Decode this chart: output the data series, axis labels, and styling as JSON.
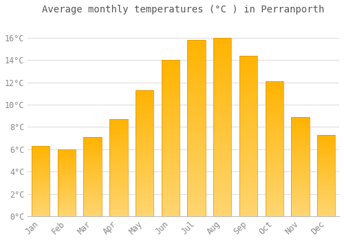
{
  "title": "Average monthly temperatures (°C ) in Perranporth",
  "months": [
    "Jan",
    "Feb",
    "Mar",
    "Apr",
    "May",
    "Jun",
    "Jul",
    "Aug",
    "Sep",
    "Oct",
    "Nov",
    "Dec"
  ],
  "values": [
    6.3,
    6.0,
    7.1,
    8.7,
    11.3,
    14.0,
    15.8,
    16.0,
    14.4,
    12.1,
    8.9,
    7.3
  ],
  "bar_color_top": "#FFB300",
  "bar_color_bottom": "#FFD060",
  "bar_edge_color": "#E09000",
  "background_color": "#FFFFFF",
  "grid_color": "#DDDDDD",
  "text_color": "#888888",
  "title_color": "#555555",
  "ylim": [
    0,
    17.6
  ],
  "ytick_values": [
    0,
    2,
    4,
    6,
    8,
    10,
    12,
    14,
    16
  ],
  "title_fontsize": 10,
  "tick_fontsize": 8.5,
  "bar_width": 0.7
}
